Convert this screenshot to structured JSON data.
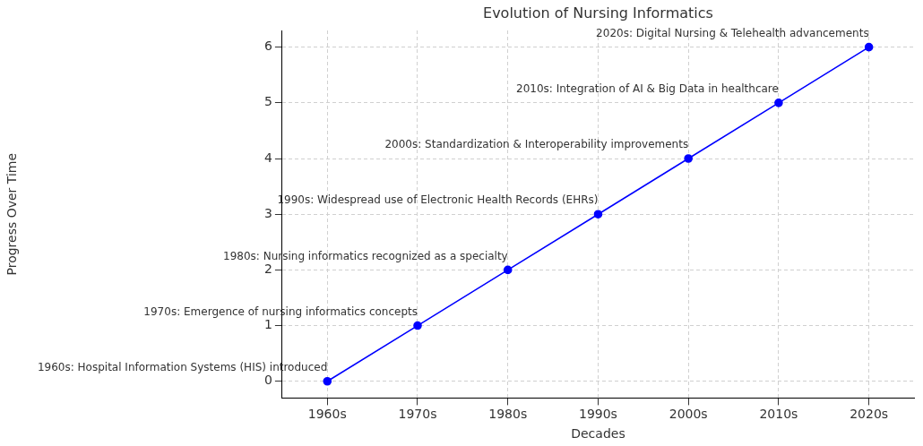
{
  "chart_data": {
    "type": "line",
    "title": "Evolution of Nursing Informatics",
    "x_label": "Decades",
    "y_label": "Progress Over Time",
    "categories": [
      "1960s",
      "1970s",
      "1980s",
      "1990s",
      "2000s",
      "2010s",
      "2020s"
    ],
    "values": [
      0,
      1,
      2,
      3,
      4,
      5,
      6
    ],
    "color": "#0000ff",
    "marker": "circle",
    "line_style": "solid",
    "ylim": [
      -0.3,
      6.3
    ],
    "yticks": [
      0,
      1,
      2,
      3,
      4,
      5,
      6
    ],
    "grid": true,
    "annotations": [
      {
        "x": "1960s",
        "y": 0,
        "text": "1960s: Hospital Information Systems (HIS) introduced"
      },
      {
        "x": "1970s",
        "y": 1,
        "text": "1970s: Emergence of nursing informatics concepts"
      },
      {
        "x": "1980s",
        "y": 2,
        "text": "1980s: Nursing informatics recognized as a specialty"
      },
      {
        "x": "1990s",
        "y": 3,
        "text": "1990s: Widespread use of Electronic Health Records (EHRs)"
      },
      {
        "x": "2000s",
        "y": 4,
        "text": "2000s: Standardization & Interoperability improvements"
      },
      {
        "x": "2010s",
        "y": 5,
        "text": "2010s: Integration of AI & Big Data in healthcare"
      },
      {
        "x": "2020s",
        "y": 6,
        "text": "2020s: Digital Nursing & Telehealth advancements"
      }
    ]
  }
}
